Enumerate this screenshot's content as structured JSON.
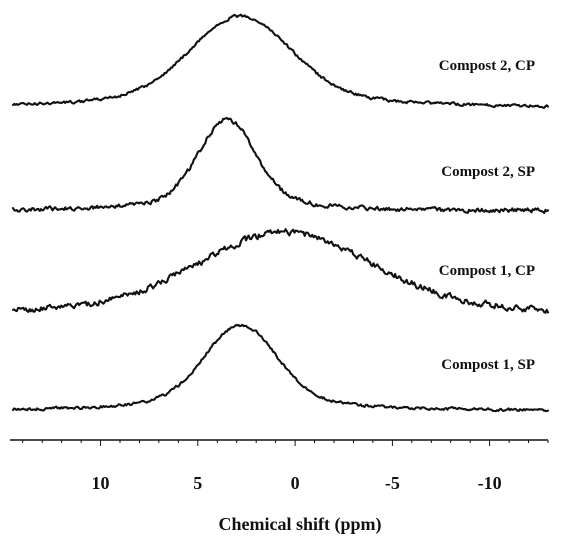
{
  "chart_data": {
    "type": "line",
    "xlabel": "Chemical shift  (ppm)",
    "ylabel": "",
    "title": "",
    "xlim": [
      14.5,
      -13.0
    ],
    "x_reversed": true,
    "x_ticks": [
      10,
      5,
      0,
      -5,
      -10
    ],
    "x_tick_labels": [
      "10",
      "5",
      "0",
      "-5",
      "-10"
    ],
    "grid": false,
    "series": [
      {
        "name": "Compost 2, CP",
        "peak_ppm": 2.8,
        "width_ppm": 5.0,
        "relative_height": 1.0,
        "noise": "low"
      },
      {
        "name": "Compost 2, SP",
        "peak_ppm": 3.5,
        "width_ppm": 2.8,
        "relative_height": 1.0,
        "noise": "medium"
      },
      {
        "name": "Compost 1, CP",
        "peak_ppm": 0.5,
        "width_ppm": 8.5,
        "relative_height": 1.0,
        "noise": "high"
      },
      {
        "name": "Compost 1, SP",
        "peak_ppm": 2.8,
        "width_ppm": 3.6,
        "relative_height": 1.0,
        "noise": "low"
      }
    ]
  }
}
